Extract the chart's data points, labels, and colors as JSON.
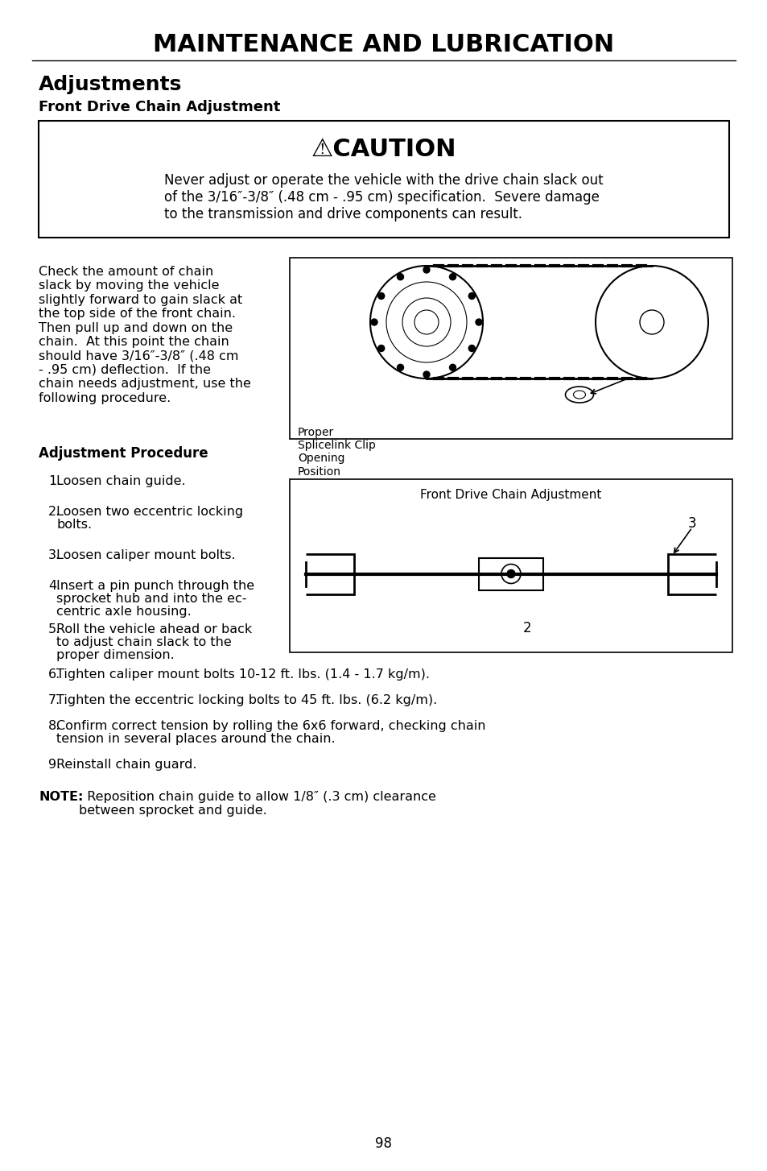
{
  "title": "MAINTENANCE AND LUBRICATION",
  "section_title": "Adjustments",
  "subsection_title": "Front Drive Chain Adjustment",
  "caution_title": "⚠CAUTION",
  "caution_text": "Never adjust or operate the vehicle with the drive chain slack out\nof the 3/16″-3/8″ (.48 cm - .95 cm) specification.  Severe damage\nto the transmission and drive components can result.",
  "body_text_left": "Check the amount of chain\nslack by moving the vehicle\nslightly forward to gain slack at\nthe top side of the front chain.\nThen pull up and down on the\nchain.  At this point the chain\nshould have 3/16″-3/8″ (.48 cm\n- .95 cm) deflection.  If the\nchain needs adjustment, use the\nfollowing procedure.",
  "adj_proc_title": "Adjustment Procedure",
  "steps": [
    "Loosen chain guide.",
    "Loosen two eccentric locking\nbolts.",
    "Loosen caliper mount bolts.",
    "Insert a pin punch through the\nsprocket hub and into the ec-\ncentric axle housing.",
    "Roll the vehicle ahead or back\nto adjust chain slack to the\nproper dimension.",
    "Tighten caliper mount bolts 10-12 ft. lbs. (1.4 - 1.7 kg/m).",
    "Tighten the eccentric locking bolts to 45 ft. lbs. (6.2 kg/m).",
    "Confirm correct tension by rolling the 6x6 forward, checking chain\ntension in several places around the chain.",
    "Reinstall chain guard."
  ],
  "note_bold": "NOTE:",
  "note_text": "  Reposition chain guide to allow 1/8″ (.3 cm) clearance\nbetween sprocket and guide.",
  "diagram1_label": "Proper\nSplicelink Clip\nOpening\nPosition",
  "diagram2_label": "Front Drive Chain Adjustment",
  "page_number": "98",
  "bg_color": "#ffffff",
  "text_color": "#000000"
}
